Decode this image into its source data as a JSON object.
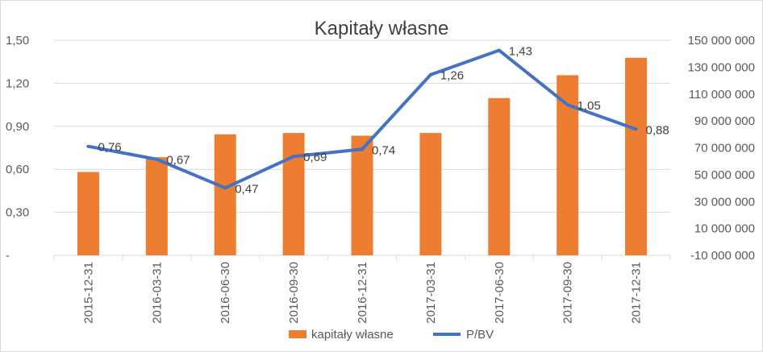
{
  "chart_data": {
    "type": "bar+line",
    "title": "Kapitały własne",
    "categories": [
      "2015-12-31",
      "2016-03-31",
      "2016-06-30",
      "2016-09-30",
      "2016-12-31",
      "2017-03-31",
      "2017-06-30",
      "2017-09-30",
      "2017-12-31"
    ],
    "series": [
      {
        "name": "kapitały własne",
        "type": "bar",
        "axis": "right",
        "color": "#ED7D31",
        "values": [
          52000000,
          63000000,
          80000000,
          81000000,
          79000000,
          81000000,
          107000000,
          124000000,
          137000000
        ]
      },
      {
        "name": "P/BV",
        "type": "line",
        "axis": "left",
        "color": "#4472C4",
        "values": [
          0.76,
          0.67,
          0.47,
          0.69,
          0.74,
          1.26,
          1.43,
          1.05,
          0.88
        ],
        "labels": [
          "0,76",
          "0,67",
          "0,47",
          "0,69",
          "0,74",
          "1,26",
          "1,43",
          "1,05",
          "0,88"
        ]
      }
    ],
    "left_axis": {
      "min": 0,
      "max": 1.5,
      "ticks": [
        "1,50",
        "1,20",
        "0,90",
        "0,60",
        "0,30",
        "-"
      ]
    },
    "right_axis": {
      "min": -10000000,
      "max": 150000000,
      "ticks": [
        "150 000 000",
        "130 000 000",
        "110 000 000",
        "90 000 000",
        "70 000 000",
        "50 000 000",
        "30 000 000",
        "10 000 000",
        "-10 000 000"
      ]
    },
    "grid": true,
    "legend_position": "bottom"
  }
}
